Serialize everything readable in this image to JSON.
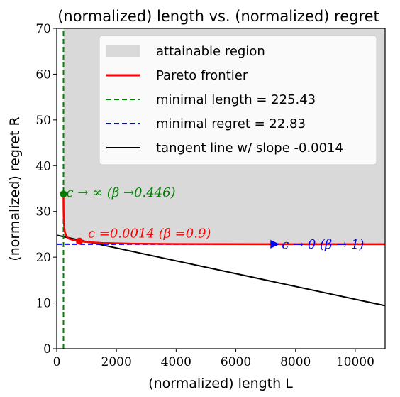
{
  "chart_data": {
    "type": "line",
    "title": "(normalized) length vs. (normalized) regret",
    "xlabel": "(normalized) length L",
    "ylabel": "(normalized) regret R",
    "xlim": [
      0,
      11000
    ],
    "ylim": [
      0,
      70
    ],
    "xticks": [
      0,
      2000,
      4000,
      6000,
      8000,
      10000
    ],
    "yticks": [
      0,
      10,
      20,
      30,
      40,
      50,
      60,
      70
    ],
    "grid": false,
    "legend_position": "upper-right",
    "colors": {
      "region": "#d9d9d9",
      "pareto": "#ff0000",
      "min_length": "#008000",
      "min_regret": "#0000ff",
      "tangent": "#000000"
    },
    "legend": [
      {
        "label": "attainable region",
        "kind": "patch",
        "color": "#d9d9d9"
      },
      {
        "label": "Pareto frontier",
        "kind": "solid",
        "color": "#ff0000"
      },
      {
        "label": "minimal length = 225.43",
        "kind": "dashed",
        "color": "#008000"
      },
      {
        "label": "minimal regret = 22.83",
        "kind": "dashed",
        "color": "#0000ff"
      },
      {
        "label": "tangent line w/ slope -0.0014",
        "kind": "solid",
        "color": "#000000"
      }
    ],
    "series": [
      {
        "name": "Pareto frontier",
        "x": [
          225,
          228,
          235,
          250,
          280,
          330,
          420,
          560,
          760,
          1000,
          1500,
          2500,
          4000,
          6000,
          8000,
          11000
        ],
        "y": [
          33.8,
          30.5,
          28.2,
          26.5,
          25.3,
          24.5,
          24.0,
          23.7,
          23.5,
          23.3,
          23.1,
          22.95,
          22.88,
          22.85,
          22.84,
          22.83
        ]
      },
      {
        "name": "minimal length = 225.43",
        "x": [
          225.43,
          225.43
        ],
        "y": [
          0,
          70
        ]
      },
      {
        "name": "minimal regret = 22.83",
        "x": [
          0,
          11000
        ],
        "y": [
          22.83,
          22.83
        ]
      },
      {
        "name": "tangent line w/ slope -0.0014",
        "x": [
          0,
          11000
        ],
        "y": [
          24.8,
          9.4
        ]
      }
    ],
    "points": [
      {
        "x": 225,
        "y": 33.8,
        "color": "#008000",
        "label": "c → ∞ (β →0.446)"
      },
      {
        "x": 760,
        "y": 23.5,
        "color": "#ff0000",
        "label": "c =0.0014 (β =0.9)"
      },
      {
        "x": 7300,
        "y": 22.83,
        "color": "#0000ff",
        "label": "c → 0 (β → 1)"
      }
    ]
  }
}
